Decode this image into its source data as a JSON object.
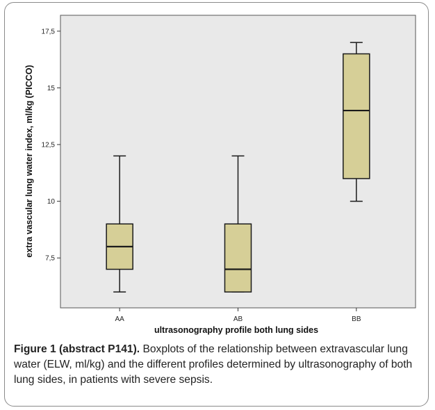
{
  "chart_data": {
    "type": "boxplot",
    "ylabel": "extra vascular lung water index, ml/kg (PICCO)",
    "xlabel": "ultrasonography profile both lung sides",
    "categories": [
      "AA",
      "AB",
      "BB"
    ],
    "boxes": [
      {
        "category": "AA",
        "min": 6,
        "q1": 7,
        "median": 8,
        "q3": 9,
        "max": 12
      },
      {
        "category": "AB",
        "min": 6,
        "q1": 6,
        "median": 7,
        "q3": 9,
        "max": 12
      },
      {
        "category": "BB",
        "min": 10,
        "q1": 11,
        "median": 14,
        "q3": 16.5,
        "max": 17
      }
    ],
    "y_ticks": [
      7.5,
      10,
      12.5,
      15,
      17.5
    ],
    "y_tick_labels": [
      "7,5",
      "10",
      "12,5",
      "15",
      "17,5"
    ],
    "ylim": [
      5.3,
      18.2
    ],
    "grid": false,
    "colors": {
      "plot_bg": "#e9e9e9",
      "box_fill": "#d6cf97",
      "stroke": "#1a1a1a"
    }
  },
  "caption": {
    "label": "Figure 1 (abstract P141).",
    "text": " Boxplots of the relationship between extravascular lung water (ELW, ml/kg) and the different profiles determined by ultrasonography of both lung sides, in patients with severe sepsis."
  }
}
